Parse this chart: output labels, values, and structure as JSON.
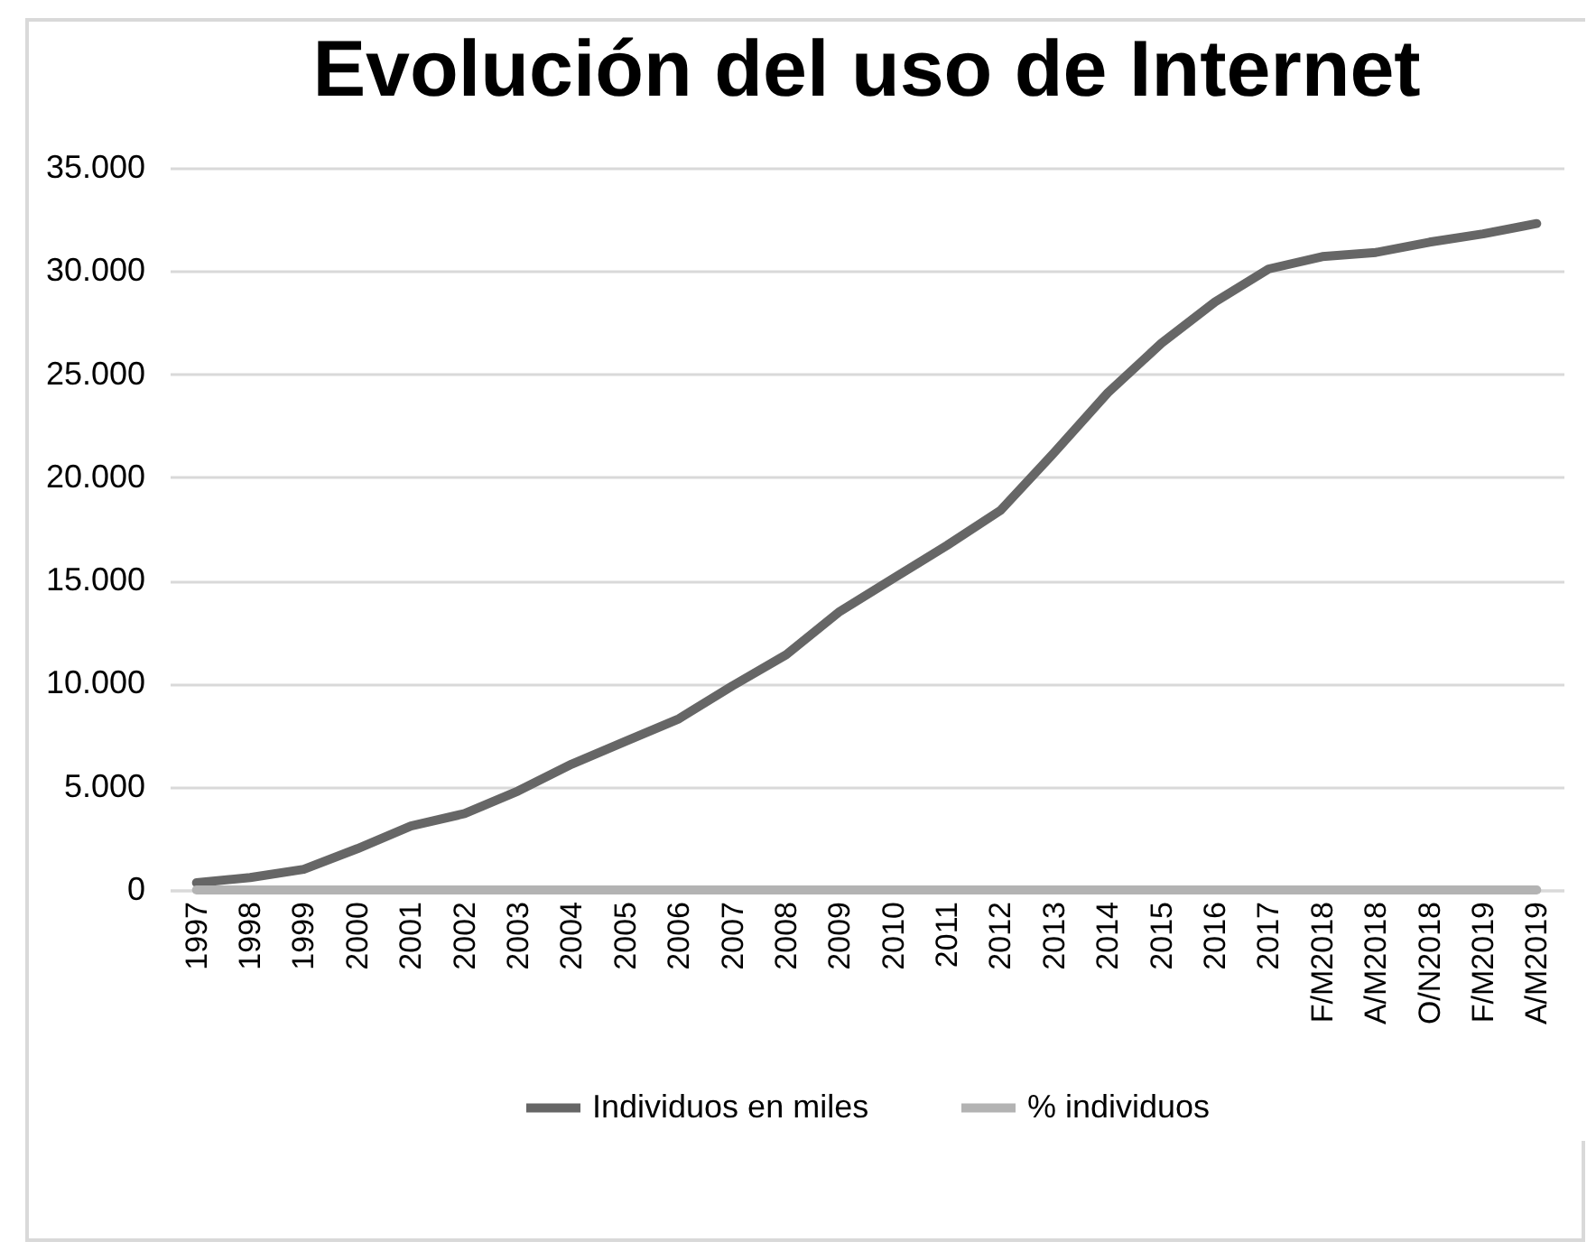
{
  "chart_data": {
    "type": "line",
    "title": "Evolución del uso de Internet",
    "categories": [
      "1997",
      "1998",
      "1999",
      "2000",
      "2001",
      "2002",
      "2003",
      "2004",
      "2005",
      "2006",
      "2007",
      "2008",
      "2009",
      "2010",
      "2011",
      "2012",
      "2013",
      "2014",
      "2015",
      "2016",
      "2017",
      "F/M2018",
      "A/M2018",
      "O/N2018",
      "F/M2019",
      "A/M2019"
    ],
    "series": [
      {
        "name": "Individuos en miles",
        "color": "#666666",
        "values": [
          350,
          600,
          1000,
          2000,
          3100,
          3700,
          4800,
          6100,
          7200,
          8300,
          9900,
          11400,
          13500,
          15100,
          16700,
          18400,
          21200,
          24100,
          26500,
          28500,
          30100,
          30700,
          30900,
          31400,
          31800,
          32300
        ]
      },
      {
        "name": "% individuos",
        "color": "#b3b3b3",
        "values": [
          0,
          0,
          0,
          0,
          0,
          0,
          0,
          0,
          0,
          0,
          0,
          0,
          0,
          0,
          0,
          0,
          0,
          0,
          0,
          0,
          0,
          0,
          0,
          0,
          0,
          0
        ]
      }
    ],
    "ylim": [
      0,
      35000
    ],
    "yticks": [
      {
        "value": 0,
        "label": "0"
      },
      {
        "value": 5000,
        "label": "5.000"
      },
      {
        "value": 10000,
        "label": "10.000"
      },
      {
        "value": 15000,
        "label": "15.000"
      },
      {
        "value": 20000,
        "label": "20.000"
      },
      {
        "value": 25000,
        "label": "25.000"
      },
      {
        "value": 30000,
        "label": "30.000"
      },
      {
        "value": 35000,
        "label": "35.000"
      }
    ],
    "grid": "y",
    "legend": "bottom",
    "line_style": "solid"
  }
}
